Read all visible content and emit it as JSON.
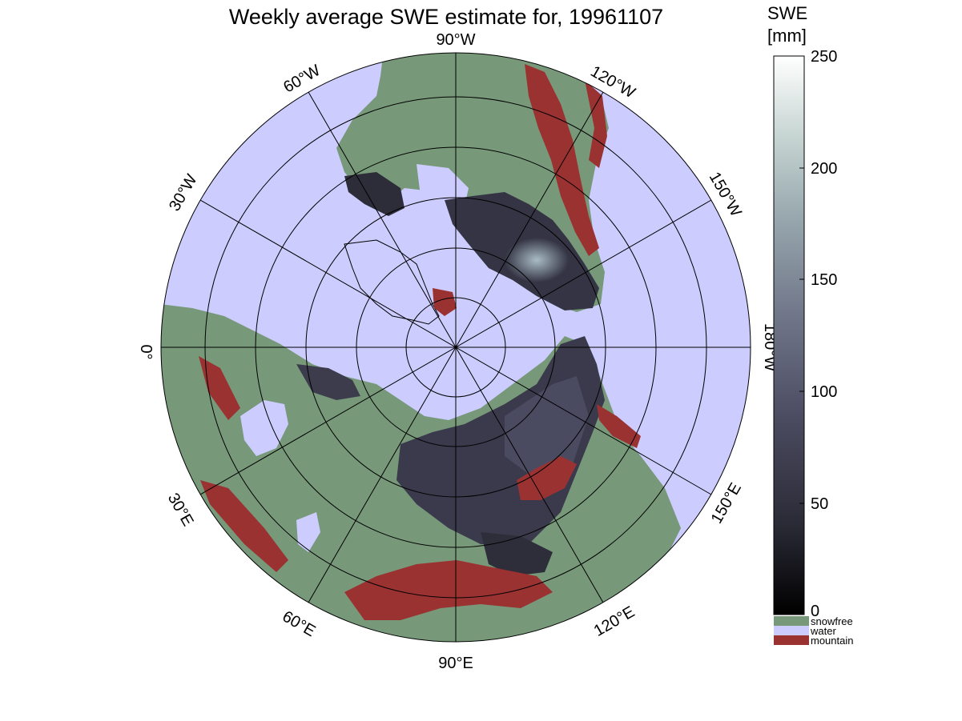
{
  "title": "Weekly average SWE estimate for, 19961107",
  "map": {
    "projection": "north-polar-stereographic",
    "colors": {
      "water": "#ccccff",
      "snowfree": "#77997a",
      "mountain": "#9b3232",
      "snow_dark": "#2b2b3a",
      "snow_mid": "#4a4a5e",
      "snow_high": "#9fb3c0",
      "coastline": "#000000"
    },
    "lon_labels": [
      {
        "text": "90°W",
        "lon": "90W"
      },
      {
        "text": "120°W",
        "lon": "120W"
      },
      {
        "text": "150°W",
        "lon": "150W"
      },
      {
        "text": "180°W",
        "lon": "180W"
      },
      {
        "text": "150°E",
        "lon": "150E"
      },
      {
        "text": "120°E",
        "lon": "120E"
      },
      {
        "text": "90°E",
        "lon": "90E"
      },
      {
        "text": "60°E",
        "lon": "60E"
      },
      {
        "text": "30°E",
        "lon": "30E"
      },
      {
        "text": "0°",
        "lon": "0"
      },
      {
        "text": "30°W",
        "lon": "30W"
      },
      {
        "text": "60°W",
        "lon": "60W"
      }
    ]
  },
  "colorbar": {
    "title_line1": "SWE",
    "title_line2": "[mm]",
    "min": 0,
    "max": 250,
    "ticks": [
      "0",
      "50",
      "100",
      "150",
      "200",
      "250"
    ],
    "gradient": [
      "#000000",
      "#2a2a36",
      "#4d4d63",
      "#737a8c",
      "#9aaab0",
      "#c8d6d3",
      "#ffffff"
    ]
  },
  "legend": [
    {
      "label": "snowfree",
      "color": "#77997a"
    },
    {
      "label": "water",
      "color": "#ccccff"
    },
    {
      "label": "mountain",
      "color": "#9b3232"
    }
  ]
}
